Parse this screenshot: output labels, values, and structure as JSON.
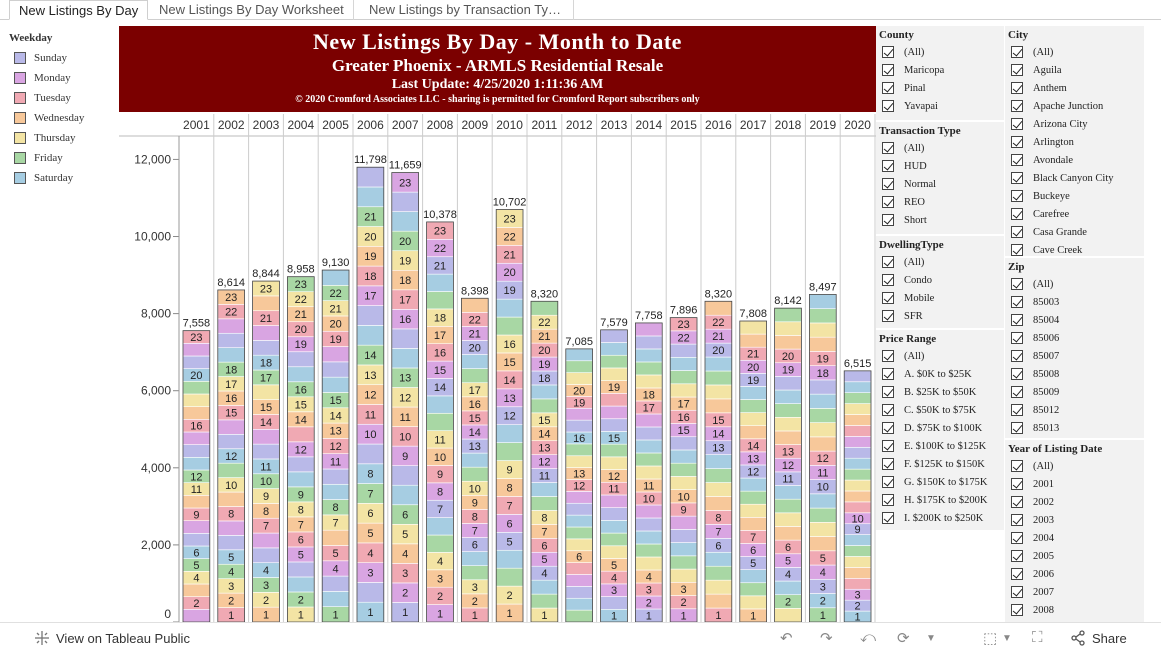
{
  "tabs": [
    {
      "label": "New Listings By Day"
    },
    {
      "label": "New Listings By Day Worksheet"
    },
    {
      "label": "New Listings by Transaction Ty…"
    }
  ],
  "legend": {
    "title": "Weekday",
    "items": [
      {
        "label": "Sunday",
        "color": "#b9b9e8"
      },
      {
        "label": "Monday",
        "color": "#d9a5e2"
      },
      {
        "label": "Tuesday",
        "color": "#f0a9b3"
      },
      {
        "label": "Wednesday",
        "color": "#f7c89a"
      },
      {
        "label": "Thursday",
        "color": "#f3e4a4"
      },
      {
        "label": "Friday",
        "color": "#a8d7a4"
      },
      {
        "label": "Saturday",
        "color": "#a6cde2"
      }
    ]
  },
  "banner": {
    "title": "New Listings By Day - Month to Date",
    "subtitle": "Greater Phoenix - ARMLS Residential Resale",
    "update": "Last Update: 4/25/2020 1:11:36 AM",
    "copyright": "© 2020 Cromford Associates LLC - sharing is permitted for Cromford Report subscribers only"
  },
  "chart_data": {
    "type": "bar",
    "stacked": true,
    "stack_by": "day of month",
    "color_by": "weekday",
    "categories": [
      "2001",
      "2002",
      "2003",
      "2004",
      "2005",
      "2006",
      "2007",
      "2008",
      "2009",
      "2010",
      "2011",
      "2012",
      "2013",
      "2014",
      "2015",
      "2016",
      "2017",
      "2018",
      "2019",
      "2020"
    ],
    "totals": [
      7558,
      8614,
      8844,
      8958,
      9130,
      11798,
      11659,
      10378,
      8398,
      10702,
      8320,
      7085,
      7579,
      7758,
      7896,
      8320,
      7808,
      8142,
      8497,
      6515
    ],
    "visible_segment_labels": [
      [
        2,
        4,
        5,
        6,
        9,
        11,
        12,
        16,
        20,
        23
      ],
      [
        1,
        2,
        3,
        4,
        5,
        8,
        10,
        12,
        15,
        16,
        17,
        18,
        22,
        23
      ],
      [
        1,
        2,
        3,
        4,
        7,
        8,
        9,
        10,
        11,
        14,
        15,
        17,
        18,
        21,
        23
      ],
      [
        1,
        2,
        5,
        6,
        7,
        8,
        9,
        12,
        14,
        15,
        16,
        19,
        20,
        21,
        22,
        23
      ],
      [
        1,
        4,
        5,
        7,
        8,
        11,
        12,
        13,
        14,
        15,
        19,
        20,
        21,
        22
      ],
      [
        1,
        3,
        4,
        5,
        6,
        7,
        8,
        10,
        11,
        12,
        13,
        14,
        17,
        18,
        19,
        20,
        21
      ],
      [
        1,
        2,
        3,
        4,
        5,
        6,
        9,
        10,
        11,
        12,
        13,
        16,
        17,
        18,
        19,
        20,
        23
      ],
      [
        1,
        2,
        3,
        4,
        7,
        8,
        9,
        10,
        11,
        14,
        15,
        16,
        17,
        18,
        21,
        22,
        23
      ],
      [
        1,
        2,
        3,
        6,
        7,
        8,
        9,
        10,
        13,
        14,
        15,
        16,
        17,
        20,
        21,
        22
      ],
      [
        1,
        2,
        5,
        6,
        7,
        8,
        9,
        12,
        13,
        14,
        15,
        16,
        19,
        20,
        21,
        22,
        23
      ],
      [
        1,
        4,
        5,
        6,
        7,
        8,
        11,
        12,
        13,
        14,
        15,
        18,
        19,
        20,
        21,
        22
      ],
      [
        6,
        12,
        13,
        16,
        19,
        20
      ],
      [
        1,
        3,
        4,
        5,
        11,
        12,
        15,
        19
      ],
      [
        1,
        2,
        3,
        4,
        10,
        11,
        17,
        18
      ],
      [
        1,
        2,
        3,
        9,
        10,
        15,
        16,
        17,
        22,
        23
      ],
      [
        1,
        6,
        7,
        8,
        13,
        14,
        15,
        20,
        21,
        22
      ],
      [
        1,
        5,
        6,
        7,
        12,
        13,
        14,
        19,
        20,
        21
      ],
      [
        2,
        4,
        5,
        6,
        11,
        12,
        13,
        19,
        20
      ],
      [
        1,
        2,
        3,
        4,
        5,
        10,
        11,
        12,
        18,
        19
      ],
      [
        1,
        2,
        3,
        9,
        10
      ]
    ],
    "yaxis": {
      "ticks": [
        0,
        2000,
        4000,
        6000,
        8000,
        10000,
        12000
      ],
      "tick_labels": [
        "0",
        "2,000",
        "4,000",
        "6,000",
        "8,000",
        "10,000",
        "12,000"
      ],
      "ylim": [
        0,
        12400
      ]
    },
    "grid": false,
    "legend_placement": "left"
  },
  "filters": [
    {
      "title": "County",
      "items": [
        "(All)",
        "Maricopa",
        "Pinal",
        "Yavapai"
      ]
    },
    {
      "title": "Transaction Type",
      "items": [
        "(All)",
        "HUD",
        "Normal",
        "REO",
        "Short"
      ]
    },
    {
      "title": "DwellingType",
      "items": [
        "(All)",
        "Condo",
        "Mobile",
        "SFR"
      ]
    },
    {
      "title": "Price Range",
      "items": [
        "(All)",
        "A. $0K to $25K",
        "B. $25K to $50K",
        "C. $50K to $75K",
        "D. $75K to $100K",
        "E. $100K to $125K",
        "F. $125K to $150K",
        "G. $150K to $175K",
        "H. $175K to $200K",
        "I. $200K to $250K"
      ]
    },
    {
      "title": "City",
      "items": [
        "(All)",
        "Aguila",
        "Anthem",
        "Apache Junction",
        "Arizona City",
        "Arlington",
        "Avondale",
        "Black Canyon City",
        "Buckeye",
        "Carefree",
        "Casa Grande",
        "Cave Creek"
      ]
    },
    {
      "title": "Zip",
      "items": [
        "(All)",
        "85003",
        "85004",
        "85006",
        "85007",
        "85008",
        "85009",
        "85012",
        "85013"
      ]
    },
    {
      "title": "Year of Listing Date",
      "items": [
        "(All)",
        "2001",
        "2002",
        "2003",
        "2004",
        "2005",
        "2006",
        "2007",
        "2008"
      ]
    }
  ],
  "toolbar": {
    "view_label": "View on Tableau Public",
    "share_label": "Share",
    "icons": [
      "undo-icon",
      "redo-icon",
      "revert-icon",
      "refresh-icon",
      "download-icon",
      "fullscreen-icon",
      "share-icon"
    ]
  }
}
